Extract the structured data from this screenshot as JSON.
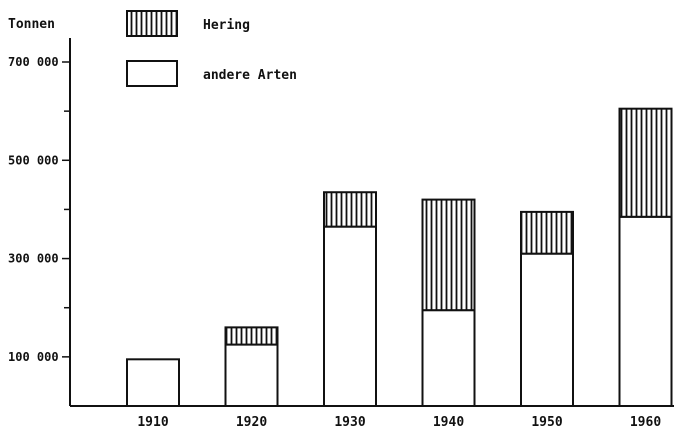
{
  "chart_data": {
    "type": "bar",
    "stacked": true,
    "ylabel": "Tonnen",
    "categories": [
      "1910",
      "1920",
      "1930",
      "1940",
      "1950",
      "1960"
    ],
    "series": [
      {
        "name": "andere Arten",
        "values": [
          95000,
          125000,
          365000,
          195000,
          310000,
          385000
        ]
      },
      {
        "name": "Hering",
        "values": [
          0,
          35000,
          70000,
          225000,
          85000,
          220000
        ]
      }
    ],
    "yticks": [
      {
        "value": 100000,
        "label": "100 000"
      },
      {
        "value": 300000,
        "label": "300 000"
      },
      {
        "value": 500000,
        "label": "500 000"
      },
      {
        "value": 700000,
        "label": "700 000"
      }
    ],
    "ylim": [
      0,
      700000
    ],
    "grid": false,
    "legend_position": "top-left"
  },
  "legend": {
    "hatched_label": "Hering",
    "plain_label": "andere Arten"
  }
}
